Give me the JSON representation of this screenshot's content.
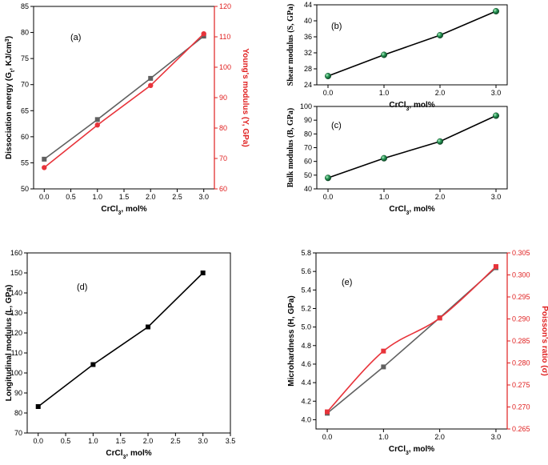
{
  "chart_data": [
    {
      "id": "a",
      "type": "line",
      "panel_label": "(a)",
      "xlabel": "CrCl",
      "xlabel_sub": "3",
      "xlabel_tail": ", mol%",
      "ylabel": "Dissociation energy (G",
      "ylabel_sub": "t",
      "ylabel_mid": ", KJ/cm",
      "ylabel_sup": "3",
      "ylabel_tail": ")",
      "ylabel_right": "Young's modulus (Y, GPa)",
      "xlim": [
        -0.2,
        3.2
      ],
      "ylim": [
        50,
        85
      ],
      "ylim_right": [
        60,
        120
      ],
      "x_ticks": [
        "0.0",
        "0.5",
        "1.0",
        "1.5",
        "2.0",
        "2.5",
        "3.0"
      ],
      "y_ticks": [
        "50",
        "55",
        "60",
        "65",
        "70",
        "75",
        "80",
        "85"
      ],
      "y_ticks_right": [
        "60",
        "70",
        "80",
        "90",
        "100",
        "110",
        "120"
      ],
      "series": [
        {
          "axis": "left",
          "color": "#606060",
          "marker": "square",
          "x": [
            0,
            1,
            2,
            3
          ],
          "y": [
            55.7,
            63.3,
            71.2,
            79.3
          ]
        },
        {
          "axis": "right",
          "color": "#e8333a",
          "marker": "circle",
          "x": [
            0,
            1,
            2,
            3
          ],
          "y": [
            67,
            81,
            94,
            111
          ]
        }
      ]
    },
    {
      "id": "b",
      "type": "line",
      "panel_label": "(b)",
      "xlabel": "CrCl",
      "xlabel_sub": "3",
      "xlabel_tail": ", mol%",
      "ylabel": "Shear modulus (S, GPa)",
      "xlim": [
        -0.2,
        3.2
      ],
      "ylim": [
        24,
        44
      ],
      "x_ticks": [
        "0.0",
        "1.0",
        "2.0",
        "3.0"
      ],
      "y_ticks": [
        "24",
        "28",
        "32",
        "36",
        "40",
        "44"
      ],
      "series": [
        {
          "color": "#000000",
          "marker": "sphere-green",
          "x": [
            0,
            1,
            2,
            3
          ],
          "y": [
            26.2,
            31.5,
            36.4,
            42.4
          ]
        }
      ]
    },
    {
      "id": "c",
      "type": "line",
      "panel_label": "(c)",
      "xlabel": "CrCl",
      "xlabel_sub": "3",
      "xlabel_tail": ", mol%",
      "ylabel": "Bulk modulus (B, GPa)",
      "xlim": [
        -0.2,
        3.2
      ],
      "ylim": [
        40,
        100
      ],
      "x_ticks": [
        "0.0",
        "1.0",
        "2.0",
        "3.0"
      ],
      "y_ticks": [
        "40",
        "50",
        "60",
        "70",
        "80",
        "90",
        "100"
      ],
      "series": [
        {
          "color": "#000000",
          "marker": "sphere-green",
          "x": [
            0,
            1,
            2,
            3
          ],
          "y": [
            48,
            62.3,
            74.5,
            93.3
          ]
        }
      ]
    },
    {
      "id": "d",
      "type": "line",
      "panel_label": "(d)",
      "xlabel": "CrCl",
      "xlabel_sub": "3",
      "xlabel_tail": ", mol%",
      "ylabel": "Longitudinal modulus (L, GPa)",
      "xlim": [
        -0.2,
        3.5
      ],
      "ylim": [
        70,
        160
      ],
      "x_ticks": [
        "0.0",
        "0.5",
        "1.0",
        "1.5",
        "2.0",
        "2.5",
        "3.0",
        "3.5"
      ],
      "y_ticks": [
        "70",
        "80",
        "90",
        "100",
        "110",
        "120",
        "130",
        "140",
        "150",
        "160"
      ],
      "series": [
        {
          "color": "#000000",
          "marker": "square",
          "x": [
            0,
            1,
            2,
            3
          ],
          "y": [
            83.2,
            104.2,
            123,
            150
          ]
        }
      ]
    },
    {
      "id": "e",
      "type": "line",
      "panel_label": "(e)",
      "xlabel": "CrCl",
      "xlabel_sub": "3",
      "xlabel_tail": ", mol%",
      "ylabel": "Microhardness (H, GPa)",
      "ylabel_right": "Poisson's ratio (σ)",
      "xlim": [
        -0.2,
        3.2
      ],
      "ylim": [
        3.9,
        5.8
      ],
      "ylim_right": [
        0.265,
        0.305
      ],
      "x_ticks": [
        "0.0",
        "1.0",
        "2.0",
        "3.0"
      ],
      "y_ticks": [
        "4.0",
        "4.2",
        "4.4",
        "4.6",
        "4.8",
        "5.0",
        "5.2",
        "5.4",
        "5.6",
        "5.8"
      ],
      "y_ticks_right": [
        "0.265",
        "0.270",
        "0.275",
        "0.280",
        "0.285",
        "0.290",
        "0.295",
        "0.300",
        "0.305"
      ],
      "series": [
        {
          "axis": "left",
          "color": "#606060",
          "marker": "square",
          "x": [
            0,
            1,
            2,
            3
          ],
          "y": [
            4.07,
            4.57,
            5.1,
            5.64
          ]
        },
        {
          "axis": "right",
          "color": "#e8333a",
          "marker": "square",
          "x": [
            0,
            1,
            2,
            3
          ],
          "y": [
            0.2689,
            0.2827,
            0.2902,
            0.3019
          ]
        }
      ]
    }
  ]
}
